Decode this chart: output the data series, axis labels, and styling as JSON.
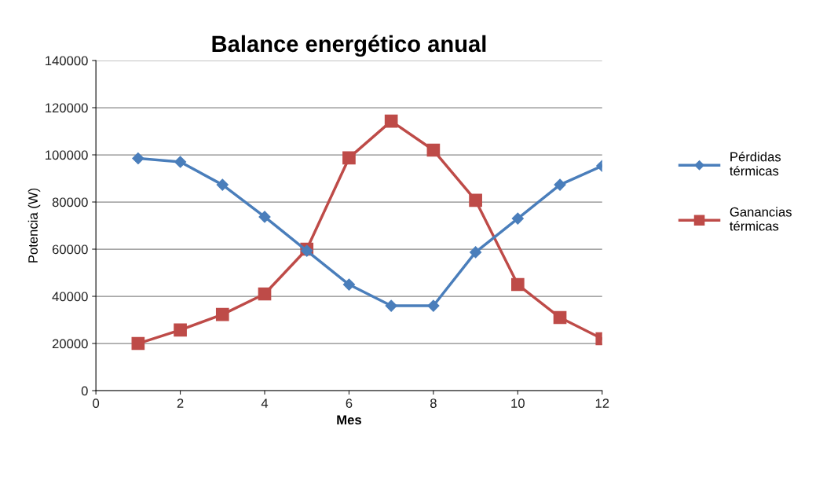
{
  "chart_data": {
    "type": "line",
    "title": "Balance energético anual",
    "xlabel": "Mes",
    "ylabel": "Potencia (W)",
    "x": [
      1,
      2,
      3,
      4,
      5,
      6,
      7,
      8,
      9,
      10,
      11,
      12
    ],
    "series": [
      {
        "name": "Pérdidas\ntérmicas",
        "color": "#4a7ebb",
        "marker": "diamond",
        "values": [
          98500,
          97000,
          87300,
          73700,
          59300,
          45000,
          36000,
          36000,
          58700,
          73000,
          87300,
          95300
        ]
      },
      {
        "name": "Ganancias\ntérmicas",
        "color": "#be4b48",
        "marker": "square",
        "values": [
          20000,
          25700,
          32300,
          41000,
          60000,
          98700,
          114300,
          102000,
          80700,
          45000,
          31000,
          22000
        ]
      }
    ],
    "xlim": [
      0,
      12
    ],
    "xticks": [
      0,
      2,
      4,
      6,
      8,
      10,
      12
    ],
    "ylim": [
      0,
      140000
    ],
    "yticks": [
      0,
      20000,
      40000,
      60000,
      80000,
      100000,
      120000,
      140000
    ],
    "grid": "y",
    "legend": "right",
    "line_style": "solid"
  }
}
